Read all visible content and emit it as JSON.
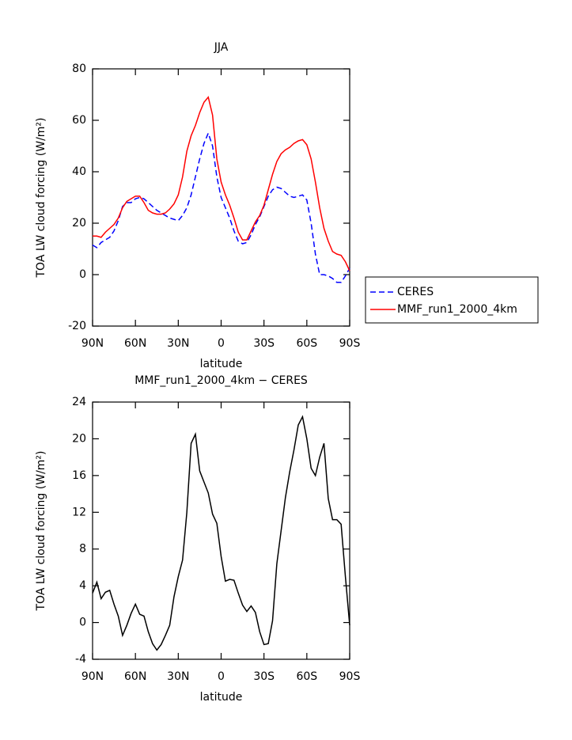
{
  "chart_data": [
    {
      "type": "line",
      "title": "JJA",
      "xlabel": "latitude",
      "ylabel": "TOA LW cloud forcing (W/m²)",
      "x": [
        90,
        87,
        84,
        81,
        78,
        75,
        72,
        69,
        66,
        63,
        60,
        57,
        54,
        51,
        48,
        45,
        42,
        39,
        36,
        33,
        30,
        27,
        24,
        21,
        18,
        15,
        12,
        9,
        6,
        3,
        0,
        -3,
        -6,
        -9,
        -12,
        -15,
        -18,
        -21,
        -24,
        -27,
        -30,
        -33,
        -36,
        -39,
        -42,
        -45,
        -48,
        -51,
        -54,
        -57,
        -60,
        -63,
        -66,
        -69,
        -72,
        -75,
        -78,
        -81,
        -84,
        -87,
        -90
      ],
      "series": [
        {
          "name": "CERES",
          "color": "#0000ff",
          "line_style": "dashed",
          "values": [
            11.5,
            10.5,
            12.5,
            13.5,
            14.5,
            17,
            21,
            26.5,
            28,
            28,
            29.5,
            30,
            29.5,
            28,
            26.5,
            25,
            24,
            23,
            22,
            21.5,
            21,
            23,
            26,
            31,
            38,
            45,
            51,
            55,
            50,
            38,
            30,
            26,
            22,
            17,
            13,
            12,
            12.5,
            15.5,
            19.5,
            22.5,
            26.5,
            30.5,
            33,
            34,
            33.5,
            32,
            30.5,
            30,
            30.5,
            31,
            29,
            20,
            8,
            0,
            0,
            -0.5,
            -1.5,
            -3,
            -3,
            -0.5,
            2.5
          ]
        },
        {
          "name": "MMF_run1_2000_4km",
          "color": "#ff0000",
          "line_style": "solid",
          "values": [
            15,
            15,
            14.5,
            16.5,
            18,
            19.5,
            22,
            26,
            28.5,
            29.5,
            30.5,
            30.5,
            28,
            25,
            24,
            23.5,
            23.5,
            24,
            25.5,
            27.5,
            31,
            38,
            48,
            54,
            58,
            63,
            67,
            69,
            62,
            45,
            36,
            31,
            27,
            22,
            16.5,
            13.5,
            13.5,
            17,
            20.5,
            23,
            27,
            33,
            39,
            44,
            47,
            48.5,
            49.5,
            51,
            52,
            52.5,
            50.5,
            45,
            36,
            26,
            18,
            13,
            9,
            8,
            7.5,
            5,
            1.5
          ]
        }
      ],
      "xlim": [
        90,
        -90
      ],
      "xticks": [
        {
          "value": 90,
          "label": "90N"
        },
        {
          "value": 60,
          "label": "60N"
        },
        {
          "value": 30,
          "label": "30N"
        },
        0,
        {
          "value": -30,
          "label": "30S"
        },
        {
          "value": -60,
          "label": "60S"
        },
        {
          "value": -90,
          "label": "90S"
        }
      ],
      "ylim": [
        -20,
        80
      ],
      "yticks": [
        -20,
        0,
        20,
        40,
        60,
        80
      ],
      "legend": "outside-right"
    },
    {
      "type": "line",
      "title": "MMF_run1_2000_4km − CERES",
      "xlabel": "latitude",
      "ylabel": "TOA LW cloud forcing (W/m²)",
      "x": [
        90,
        87,
        84,
        81,
        78,
        75,
        72,
        69,
        66,
        63,
        60,
        57,
        54,
        51,
        48,
        45,
        42,
        39,
        36,
        33,
        30,
        27,
        24,
        21,
        18,
        15,
        12,
        9,
        6,
        3,
        0,
        -3,
        -6,
        -9,
        -12,
        -15,
        -18,
        -21,
        -24,
        -27,
        -30,
        -33,
        -36,
        -39,
        -42,
        -45,
        -48,
        -51,
        -54,
        -57,
        -60,
        -63,
        -66,
        -69,
        -72,
        -75,
        -78,
        -81,
        -84,
        -87,
        -90
      ],
      "color": "#000000",
      "values": [
        3.2,
        4.4,
        2.6,
        3.3,
        3.5,
        2,
        0.7,
        -1.4,
        -0.3,
        1,
        2,
        0.9,
        0.7,
        -1,
        -2.3,
        -3,
        -2.4,
        -1.4,
        -0.3,
        2.8,
        5,
        6.8,
        12,
        19.5,
        20.5,
        16.5,
        15.3,
        14.1,
        11.8,
        10.8,
        7.2,
        4.5,
        4.7,
        4.6,
        3.2,
        1.9,
        1.2,
        1.8,
        1.1,
        -1,
        -2.4,
        -2.3,
        0.2,
        6.4,
        10,
        13.6,
        16.4,
        18.8,
        21.5,
        22.4,
        20,
        16.8,
        16,
        18,
        19.5,
        13.5,
        11.2,
        11.2,
        10.7,
        5,
        -0.3
      ],
      "xlim": [
        90,
        -90
      ],
      "xticks": [
        {
          "value": 90,
          "label": "90N"
        },
        {
          "value": 60,
          "label": "60N"
        },
        {
          "value": 30,
          "label": "30N"
        },
        0,
        {
          "value": -30,
          "label": "30S"
        },
        {
          "value": -60,
          "label": "60S"
        },
        {
          "value": -90,
          "label": "90S"
        }
      ],
      "ylim": [
        -4,
        24
      ],
      "yticks": [
        -4,
        0,
        4,
        8,
        12,
        16,
        20,
        24
      ]
    }
  ]
}
